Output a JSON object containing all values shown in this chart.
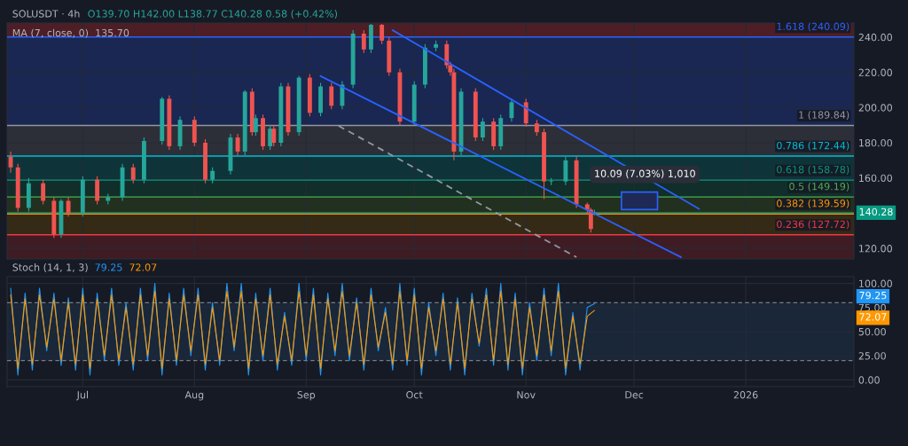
{
  "chart_data": [
    {
      "type": "candlestick",
      "title": "SOLUSDT · 4h",
      "subtitle": "O139.70 H142.00 L138.77 C140.28 0.58 (+0.42%)",
      "annotations": [
        "MA (7, close, 0)  135.70",
        {
          "text": "10.09 (7.03%) 1,010",
          "x": "2025-12-04",
          "y": 162
        }
      ],
      "x": [
        "2025-06-11",
        "2025-06-13",
        "2025-06-16",
        "2025-06-20",
        "2025-06-23",
        "2025-06-25",
        "2025-06-27",
        "2025-07-01",
        "2025-07-05",
        "2025-07-08",
        "2025-07-12",
        "2025-07-15",
        "2025-07-18",
        "2025-07-23",
        "2025-07-25",
        "2025-07-28",
        "2025-08-01",
        "2025-08-04",
        "2025-08-06",
        "2025-08-11",
        "2025-08-13",
        "2025-08-15",
        "2025-08-17",
        "2025-08-18",
        "2025-08-20",
        "2025-08-22",
        "2025-08-23",
        "2025-08-25",
        "2025-08-27",
        "2025-08-30",
        "2025-09-02",
        "2025-09-05",
        "2025-09-08",
        "2025-09-11",
        "2025-09-14",
        "2025-09-17",
        "2025-09-19",
        "2025-09-22",
        "2025-09-24",
        "2025-09-27",
        "2025-10-01",
        "2025-10-04",
        "2025-10-07",
        "2025-10-10",
        "2025-10-11",
        "2025-10-12",
        "2025-10-14",
        "2025-10-18",
        "2025-10-20",
        "2025-10-23",
        "2025-10-25",
        "2025-10-28",
        "2025-11-01",
        "2025-11-04",
        "2025-11-06",
        "2025-11-08",
        "2025-11-12",
        "2025-11-15",
        "2025-11-18",
        "2025-11-19",
        "2025-11-20"
      ],
      "ohlc": [
        [
          172,
          175,
          163,
          166
        ],
        [
          166,
          168,
          141,
          143
        ],
        [
          143,
          160,
          141,
          157
        ],
        [
          157,
          159,
          145,
          147
        ],
        [
          147,
          149,
          126,
          128
        ],
        [
          128,
          148,
          126,
          147
        ],
        [
          147,
          149,
          138,
          140
        ],
        [
          140,
          161,
          138,
          159
        ],
        [
          159,
          161,
          145,
          147
        ],
        [
          147,
          151,
          145,
          149
        ],
        [
          149,
          168,
          147,
          166
        ],
        [
          166,
          168,
          157,
          159
        ],
        [
          159,
          183,
          157,
          181
        ],
        [
          181,
          206,
          179,
          205
        ],
        [
          205,
          207,
          176,
          178
        ],
        [
          178,
          195,
          176,
          193
        ],
        [
          193,
          195,
          178,
          180
        ],
        [
          180,
          182,
          157,
          159
        ],
        [
          159,
          166,
          157,
          164
        ],
        [
          164,
          185,
          162,
          183
        ],
        [
          183,
          185,
          173,
          175
        ],
        [
          175,
          210,
          173,
          209
        ],
        [
          209,
          211,
          184,
          186
        ],
        [
          186,
          196,
          184,
          194
        ],
        [
          194,
          196,
          176,
          178
        ],
        [
          178,
          190,
          176,
          188
        ],
        [
          188,
          190,
          178,
          180
        ],
        [
          180,
          214,
          178,
          212
        ],
        [
          212,
          214,
          184,
          186
        ],
        [
          186,
          218,
          184,
          217
        ],
        [
          217,
          219,
          195,
          197
        ],
        [
          197,
          214,
          195,
          212
        ],
        [
          212,
          214,
          199,
          201
        ],
        [
          201,
          215,
          199,
          213
        ],
        [
          213,
          244,
          211,
          242
        ],
        [
          242,
          244,
          231,
          233
        ],
        [
          233,
          247.5,
          231,
          247
        ],
        [
          247,
          247.5,
          236,
          238
        ],
        [
          238,
          240,
          218,
          220
        ],
        [
          220,
          222,
          190,
          192
        ],
        [
          192,
          215,
          190,
          213
        ],
        [
          213,
          236,
          211,
          234
        ],
        [
          234,
          238,
          232,
          236
        ],
        [
          236,
          238,
          222,
          224
        ],
        [
          224,
          226,
          218,
          220
        ],
        [
          220,
          222,
          170,
          175
        ],
        [
          175,
          211,
          173,
          209
        ],
        [
          209,
          211,
          181,
          183
        ],
        [
          183,
          194,
          181,
          192
        ],
        [
          192,
          194,
          176,
          178
        ],
        [
          178,
          196,
          176,
          194
        ],
        [
          194,
          205,
          192,
          203
        ],
        [
          203,
          205,
          189,
          191
        ],
        [
          191,
          193,
          184,
          186
        ],
        [
          186,
          188,
          148,
          158
        ],
        [
          158,
          160,
          156,
          158
        ],
        [
          158,
          172,
          156,
          170
        ],
        [
          170,
          172,
          143,
          145
        ],
        [
          145,
          146,
          139,
          142
        ],
        [
          142,
          143,
          129,
          131
        ],
        [
          139.7,
          142.0,
          138.77,
          140.28
        ]
      ],
      "series": [
        {
          "type": "line",
          "color": "#2962ff",
          "x": [
            "2025-09-25",
            "2025-12-19"
          ],
          "values": [
            243.9,
            142.4
          ]
        },
        {
          "type": "line",
          "color": "#2962ff",
          "x": [
            "2025-09-05",
            "2025-12-14"
          ],
          "values": [
            217.9,
            115
          ]
        },
        {
          "type": "line",
          "color": "#9598a1",
          "line_style": "dashed",
          "x": [
            "2025-09-10",
            "2025-11-15"
          ],
          "values": [
            189.6,
            115
          ]
        }
      ],
      "ref_lines": [
        {
          "axis": "y",
          "value": 240.09,
          "label": "1.618 (240.09)",
          "color": "#2962ff"
        },
        {
          "axis": "y",
          "value": 189.84,
          "label": "1 (189.84)",
          "color": "#9598a1"
        },
        {
          "axis": "y",
          "value": 172.44,
          "label": "0.786 (172.44)",
          "color": "#00bcd4"
        },
        {
          "axis": "y",
          "value": 158.78,
          "label": "0.618 (158.78)",
          "color": "#089981"
        },
        {
          "axis": "y",
          "value": 149.19,
          "label": "0.5 (149.19)",
          "color": "#4caf50"
        },
        {
          "axis": "y",
          "value": 139.59,
          "label": "0.382 (139.59)",
          "color": "#ff9800"
        },
        {
          "axis": "y",
          "value": 127.72,
          "label": "0.236 (127.72)",
          "color": "#f23645"
        },
        {
          "axis": "y",
          "value": 140.28,
          "label": "140.28",
          "color": "#089981",
          "line_style": "solid"
        }
      ],
      "bands": [
        {
          "axis": "y",
          "from": 240.09,
          "to": 248,
          "color": "#5b1f27"
        },
        {
          "axis": "y",
          "from": 189.84,
          "to": 240.09,
          "color": "#1a2b5e"
        },
        {
          "axis": "y",
          "from": 172.44,
          "to": 189.84,
          "color": "#33353d"
        },
        {
          "axis": "y",
          "from": 158.78,
          "to": 172.44,
          "color": "#0d3b40"
        },
        {
          "axis": "y",
          "from": 149.19,
          "to": 158.78,
          "color": "#10332c"
        },
        {
          "axis": "y",
          "from": 139.59,
          "to": 149.19,
          "color": "#25361f"
        },
        {
          "axis": "y",
          "from": 127.72,
          "to": 139.59,
          "color": "#3d2e12"
        },
        {
          "axis": "y",
          "from": 114,
          "to": 127.72,
          "color": "#4a1d24"
        }
      ],
      "xlim": [
        "2025-06-10",
        "2026-01-31"
      ],
      "ylim": [
        114,
        248
      ],
      "xticks": [
        "2025-07-01",
        "2025-08-01",
        "2025-09-01",
        "2025-10-01",
        "2025-11-01",
        "2025-12-01",
        "2026-01-01"
      ],
      "yticks": [
        {
          "value": 120,
          "label": "120.00"
        },
        {
          "value": 160,
          "label": "160.00"
        },
        {
          "value": 180,
          "label": "180.00"
        },
        {
          "value": 200,
          "label": "200.00"
        },
        {
          "value": 220,
          "label": "220.00"
        },
        {
          "value": 240,
          "label": "240.00"
        }
      ],
      "tick_labels": "y",
      "grid": true,
      "legend": false
    },
    {
      "type": "line",
      "title": "Stoch (14, 1, 3)",
      "x": [
        "2025-06-11",
        "2025-06-13",
        "2025-06-15",
        "2025-06-17",
        "2025-06-19",
        "2025-06-21",
        "2025-06-23",
        "2025-06-25",
        "2025-06-27",
        "2025-06-29",
        "2025-07-01",
        "2025-07-03",
        "2025-07-05",
        "2025-07-07",
        "2025-07-09",
        "2025-07-11",
        "2025-07-13",
        "2025-07-15",
        "2025-07-17",
        "2025-07-19",
        "2025-07-21",
        "2025-07-23",
        "2025-07-25",
        "2025-07-27",
        "2025-07-29",
        "2025-07-31",
        "2025-08-02",
        "2025-08-04",
        "2025-08-06",
        "2025-08-08",
        "2025-08-10",
        "2025-08-12",
        "2025-08-14",
        "2025-08-16",
        "2025-08-18",
        "2025-08-20",
        "2025-08-22",
        "2025-08-24",
        "2025-08-26",
        "2025-08-28",
        "2025-08-30",
        "2025-09-01",
        "2025-09-03",
        "2025-09-05",
        "2025-09-07",
        "2025-09-09",
        "2025-09-11",
        "2025-09-13",
        "2025-09-15",
        "2025-09-17",
        "2025-09-19",
        "2025-09-21",
        "2025-09-23",
        "2025-09-25",
        "2025-09-27",
        "2025-09-29",
        "2025-10-01",
        "2025-10-03",
        "2025-10-05",
        "2025-10-07",
        "2025-10-09",
        "2025-10-11",
        "2025-10-13",
        "2025-10-15",
        "2025-10-17",
        "2025-10-19",
        "2025-10-21",
        "2025-10-23",
        "2025-10-25",
        "2025-10-27",
        "2025-10-29",
        "2025-10-31",
        "2025-11-02",
        "2025-11-04",
        "2025-11-06",
        "2025-11-08",
        "2025-11-10",
        "2025-11-12",
        "2025-11-14",
        "2025-11-16",
        "2025-11-18",
        "2025-11-20"
      ],
      "series": [
        {
          "color": "#2196f3",
          "values": [
            95,
            5,
            90,
            10,
            95,
            30,
            90,
            15,
            85,
            10,
            95,
            5,
            90,
            20,
            95,
            15,
            80,
            10,
            95,
            20,
            100,
            5,
            90,
            15,
            95,
            25,
            95,
            10,
            80,
            15,
            100,
            30,
            100,
            5,
            90,
            20,
            95,
            10,
            70,
            15,
            100,
            20,
            95,
            5,
            90,
            25,
            100,
            20,
            85,
            10,
            95,
            30,
            75,
            10,
            100,
            15,
            95,
            5,
            80,
            25,
            90,
            10,
            85,
            5,
            90,
            35,
            95,
            15,
            100,
            10,
            90,
            5,
            80,
            20,
            95,
            25,
            100,
            5,
            70,
            10,
            75,
            79
          ]
        },
        {
          "color": "#ff9800",
          "values": [
            88,
            12,
            84,
            16,
            88,
            34,
            84,
            20,
            80,
            16,
            88,
            12,
            84,
            25,
            88,
            20,
            75,
            16,
            88,
            25,
            92,
            12,
            84,
            20,
            88,
            30,
            88,
            16,
            75,
            20,
            92,
            34,
            92,
            12,
            84,
            25,
            88,
            16,
            66,
            20,
            92,
            25,
            88,
            12,
            84,
            30,
            92,
            25,
            80,
            16,
            88,
            34,
            70,
            16,
            92,
            20,
            88,
            12,
            75,
            30,
            84,
            16,
            80,
            12,
            84,
            38,
            88,
            20,
            92,
            16,
            84,
            12,
            75,
            25,
            88,
            30,
            92,
            12,
            66,
            16,
            66,
            72
          ]
        }
      ],
      "annotations": [
        "79.25",
        "72.07"
      ],
      "ref_lines": [
        {
          "axis": "y",
          "value": 80,
          "color": "#787b86",
          "line_style": "dashed"
        },
        {
          "axis": "y",
          "value": 20,
          "color": "#787b86",
          "line_style": "dashed"
        }
      ],
      "bands": [
        {
          "axis": "y",
          "from": 20,
          "to": 80,
          "color": "#1c2a3d"
        }
      ],
      "xlim": [
        "2025-06-10",
        "2026-01-31"
      ],
      "ylim": [
        -7,
        107
      ],
      "xticks": [
        {
          "value": "2025-07-01",
          "label": "Jul"
        },
        {
          "value": "2025-08-01",
          "label": "Aug"
        },
        {
          "value": "2025-09-01",
          "label": "Sep"
        },
        {
          "value": "2025-10-01",
          "label": "Oct"
        },
        {
          "value": "2025-11-01",
          "label": "Nov"
        },
        {
          "value": "2025-12-01",
          "label": "Dec"
        },
        {
          "value": "2026-01-01",
          "label": "2026"
        }
      ],
      "yticks": [
        {
          "value": 0,
          "label": "0.00"
        },
        {
          "value": 25,
          "label": "25.00"
        },
        {
          "value": 50,
          "label": "50.00"
        },
        {
          "value": 75,
          "label": "75.00"
        },
        {
          "value": 100,
          "label": "100.00"
        }
      ],
      "grid": true,
      "legend": false
    }
  ]
}
